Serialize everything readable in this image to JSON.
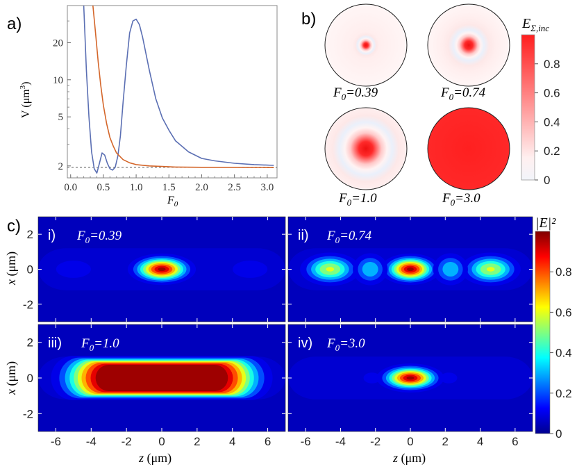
{
  "figure": {
    "panel_labels": {
      "a": "a)",
      "b": "b)",
      "c": "c)"
    }
  },
  "chart_data": [
    {
      "id": "a",
      "type": "line",
      "xlabel": "F₀",
      "ylabel": "V (μm³)",
      "yscale": "log",
      "xlim": [
        -0.05,
        3.15
      ],
      "ylim": [
        1.6,
        40
      ],
      "xticks": [
        0.0,
        0.5,
        1.0,
        1.5,
        2.0,
        2.5,
        3.0
      ],
      "xtick_labels": [
        "0.0",
        "0.5",
        "1.0",
        "1.5",
        "2.0",
        "2.5",
        "3.0"
      ],
      "yticks": [
        2,
        5,
        10,
        20
      ],
      "ytick_labels": [
        "2",
        "5",
        "10",
        "20"
      ],
      "reference_line": {
        "y": 1.95,
        "style": "dashed"
      },
      "series": [
        {
          "name": "blue",
          "color": "#5b6fb3",
          "x": [
            0.2,
            0.24,
            0.28,
            0.32,
            0.36,
            0.4,
            0.44,
            0.48,
            0.52,
            0.56,
            0.6,
            0.64,
            0.68,
            0.72,
            0.76,
            0.8,
            0.85,
            0.9,
            0.95,
            1.0,
            1.05,
            1.1,
            1.2,
            1.3,
            1.4,
            1.5,
            1.6,
            1.8,
            2.0,
            2.2,
            2.5,
            2.8,
            3.1
          ],
          "y": [
            40,
            12,
            5.0,
            2.6,
            1.9,
            1.75,
            2.1,
            2.55,
            2.45,
            2.1,
            1.9,
            1.85,
            1.95,
            2.4,
            3.5,
            6.5,
            13,
            24,
            30,
            31,
            28,
            22,
            12,
            7.0,
            4.9,
            3.9,
            3.2,
            2.6,
            2.3,
            2.2,
            2.1,
            2.05,
            2.02
          ]
        },
        {
          "name": "orange",
          "color": "#d4662a",
          "x": [
            0.34,
            0.38,
            0.42,
            0.46,
            0.5,
            0.55,
            0.6,
            0.65,
            0.7,
            0.8,
            0.9,
            1.0,
            1.2,
            1.4,
            1.6,
            2.0,
            2.5,
            3.1
          ],
          "y": [
            40,
            24,
            14,
            9.0,
            6.2,
            4.4,
            3.4,
            2.9,
            2.55,
            2.25,
            2.12,
            2.05,
            2.0,
            1.98,
            1.96,
            1.95,
            1.95,
            1.94
          ]
        }
      ]
    },
    {
      "id": "b",
      "type": "heatmap",
      "colorbar": {
        "label": "E",
        "label_subscript": "Σ,inc",
        "min": 0,
        "max": 1,
        "ticks": [
          0,
          0.2,
          0.4,
          0.6,
          0.8
        ],
        "tick_labels": [
          "0",
          "0.2",
          "0.4",
          "0.6",
          "0.8"
        ]
      },
      "disks": [
        {
          "label": "F",
          "label_subscript": "0",
          "label_value": "=0.39",
          "core_size": 0.12,
          "ring_period": 0.3
        },
        {
          "label": "F",
          "label_subscript": "0",
          "label_value": "=0.74",
          "core_size": 0.22,
          "ring_period": 0.62
        },
        {
          "label": "F",
          "label_subscript": "0",
          "label_value": "=1.0",
          "core_size": 0.38,
          "ring_period": 0.95
        },
        {
          "label": "F",
          "label_subscript": "0",
          "label_value": "=3.0",
          "core_size": 1.0,
          "ring_period": 0
        }
      ]
    },
    {
      "id": "c",
      "type": "heatmap",
      "xlabel": "z (μm)",
      "ylabel": "x (μm)",
      "xlim": [
        -7,
        7
      ],
      "ylim": [
        -3,
        3
      ],
      "xticks": [
        -6,
        -4,
        -2,
        0,
        2,
        4,
        6
      ],
      "xtick_labels": [
        "-6",
        "-4",
        "-2",
        "0",
        "2",
        "4",
        "6"
      ],
      "yticks": [
        2,
        0,
        -2
      ],
      "ytick_labels": [
        "2",
        "0",
        "-2"
      ],
      "colorbar": {
        "label": "|E|²",
        "min": 0,
        "max": 1,
        "ticks": [
          0,
          0.2,
          0.4,
          0.6,
          0.8
        ],
        "tick_labels": [
          "0",
          "0.2",
          "0.4",
          "0.6",
          "0.8"
        ]
      },
      "panels": [
        {
          "roman": "i)",
          "label": "F",
          "label_subscript": "0",
          "label_value": "=0.39",
          "blobs": [
            {
              "z": 0,
              "x": 0,
              "sz": 0.9,
              "sx": 0.42,
              "amp": 1.0
            },
            {
              "z": -5,
              "x": 0,
              "sz": 1.2,
              "sx": 0.6,
              "amp": 0.14
            },
            {
              "z": 5,
              "x": 0,
              "sz": 1.2,
              "sx": 0.6,
              "amp": 0.14
            }
          ]
        },
        {
          "roman": "ii)",
          "label": "F",
          "label_subscript": "0",
          "label_value": "=0.74",
          "blobs": [
            {
              "z": 0,
              "x": 0,
              "sz": 0.8,
              "sx": 0.42,
              "amp": 1.0
            },
            {
              "z": -4.6,
              "x": 0,
              "sz": 0.9,
              "sx": 0.5,
              "amp": 0.62
            },
            {
              "z": 4.6,
              "x": 0,
              "sz": 0.9,
              "sx": 0.5,
              "amp": 0.62
            },
            {
              "z": -2.3,
              "x": 0,
              "sz": 0.6,
              "sx": 0.55,
              "amp": 0.4
            },
            {
              "z": 2.3,
              "x": 0,
              "sz": 0.6,
              "sx": 0.55,
              "amp": 0.4
            }
          ]
        },
        {
          "roman": "iii)",
          "label": "F",
          "label_subscript": "0",
          "label_value": "=1.0",
          "blobs": [
            {
              "z": 0,
              "x": 0,
              "sz": 3.8,
              "sx": 0.75,
              "amp": 1.0,
              "flat": true
            }
          ]
        },
        {
          "roman": "iv)",
          "label": "F",
          "label_subscript": "0",
          "label_value": "=3.0",
          "blobs": [
            {
              "z": 0,
              "x": 0,
              "sz": 0.9,
              "sx": 0.38,
              "amp": 1.0
            },
            {
              "z": -2.2,
              "x": 0,
              "sz": 0.8,
              "sx": 0.5,
              "amp": 0.12
            },
            {
              "z": 2.2,
              "x": 0,
              "sz": 0.8,
              "sx": 0.5,
              "amp": 0.12
            }
          ]
        }
      ]
    }
  ]
}
